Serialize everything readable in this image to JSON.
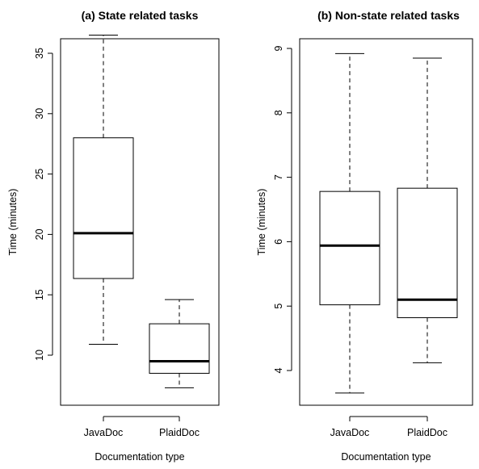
{
  "chart_data": [
    {
      "type": "box",
      "title": "(a) State related tasks",
      "xlabel": "Documentation type",
      "ylabel": "Time (minutes)",
      "ylim": [
        7.2,
        37.5
      ],
      "yticks": [
        10,
        15,
        20,
        25,
        30,
        35
      ],
      "categories": [
        "JavaDoc",
        "PlaidDoc"
      ],
      "boxes": [
        {
          "category": "JavaDoc",
          "whisker_low": 10.9,
          "q1": 16.35,
          "median": 20.1,
          "q3": 28.0,
          "whisker_high": 36.5
        },
        {
          "category": "PlaidDoc",
          "whisker_low": 7.3,
          "q1": 8.5,
          "median": 9.5,
          "q3": 12.6,
          "whisker_high": 14.6
        }
      ],
      "grid": false,
      "legend": "none"
    },
    {
      "type": "box",
      "title": "(b) Non-state related tasks",
      "xlabel": "Documentation type",
      "ylabel": "Time (minutes)",
      "ylim": [
        3.5,
        9.05
      ],
      "yticks": [
        4,
        5,
        6,
        7,
        8,
        9
      ],
      "categories": [
        "JavaDoc",
        "PlaidDoc"
      ],
      "boxes": [
        {
          "category": "JavaDoc",
          "whisker_low": 3.65,
          "q1": 5.02,
          "median": 5.94,
          "q3": 6.78,
          "whisker_high": 8.92
        },
        {
          "category": "PlaidDoc",
          "whisker_low": 4.12,
          "q1": 4.82,
          "median": 5.1,
          "q3": 6.83,
          "whisker_high": 8.85
        }
      ],
      "grid": false,
      "legend": "none"
    }
  ]
}
